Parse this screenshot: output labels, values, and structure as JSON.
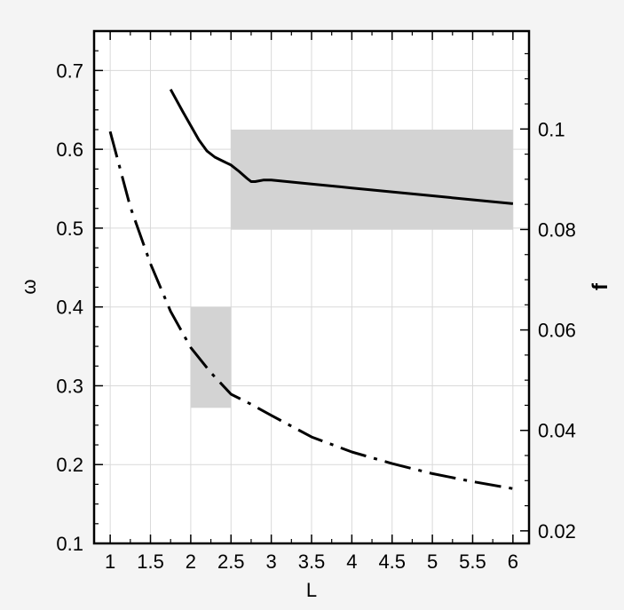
{
  "chart_data": {
    "type": "line",
    "xlabel": "L",
    "ylabel_left": "ω",
    "ylabel_right": "f",
    "xlim": [
      0.8,
      6.2
    ],
    "ylim_left": [
      0.1,
      0.75
    ],
    "ylim_right": [
      0.0175,
      0.1195
    ],
    "x_ticks": [
      1,
      1.5,
      2,
      2.5,
      3,
      3.5,
      4,
      4.5,
      5,
      5.5,
      6
    ],
    "x_tick_labels": [
      "1",
      "1.5",
      "2",
      "2.5",
      "3",
      "3.5",
      "4",
      "4.5",
      "5",
      "5.5",
      "6"
    ],
    "y_left_ticks": [
      0.1,
      0.2,
      0.3,
      0.4,
      0.5,
      0.6,
      0.7
    ],
    "y_left_tick_labels": [
      "0.1",
      "0.2",
      "0.3",
      "0.4",
      "0.5",
      "0.6",
      "0.7"
    ],
    "y_right_ticks": [
      0.02,
      0.04,
      0.06,
      0.08,
      0.1
    ],
    "y_right_tick_labels": [
      "0.02",
      "0.04",
      "0.06",
      "0.08",
      "0.1"
    ],
    "grid": true,
    "shaded_regions": [
      {
        "axis": "left",
        "x": [
          2.5,
          6.0
        ],
        "y": [
          0.498,
          0.625
        ],
        "color": "#d3d3d3"
      },
      {
        "axis": "left",
        "x": [
          2.0,
          2.5
        ],
        "y": [
          0.272,
          0.4
        ],
        "color": "#d3d3d3"
      }
    ],
    "series": [
      {
        "axis": "left",
        "style": "solid",
        "color": "#000000",
        "x": [
          1.75,
          1.9,
          2.0,
          2.1,
          2.2,
          2.3,
          2.4,
          2.5,
          2.6,
          2.7,
          2.75,
          2.8,
          2.9,
          3.0,
          3.5,
          4.0,
          4.5,
          5.0,
          5.5,
          6.0
        ],
        "y": [
          0.676,
          0.648,
          0.63,
          0.612,
          0.598,
          0.59,
          0.585,
          0.58,
          0.572,
          0.563,
          0.559,
          0.559,
          0.561,
          0.561,
          0.556,
          0.551,
          0.546,
          0.541,
          0.536,
          0.531
        ]
      },
      {
        "axis": "right",
        "style": "dashdot",
        "color": "#000000",
        "x": [
          1.0,
          1.25,
          1.5,
          1.75,
          2.0,
          2.25,
          2.5,
          2.75,
          3.0,
          3.5,
          4.0,
          4.5,
          5.0,
          5.5,
          6.0
        ],
        "y": [
          0.0995,
          0.0845,
          0.0732,
          0.0637,
          0.0565,
          0.0515,
          0.0472,
          0.0452,
          0.043,
          0.0387,
          0.0357,
          0.0334,
          0.0314,
          0.0298,
          0.0284
        ]
      }
    ]
  }
}
